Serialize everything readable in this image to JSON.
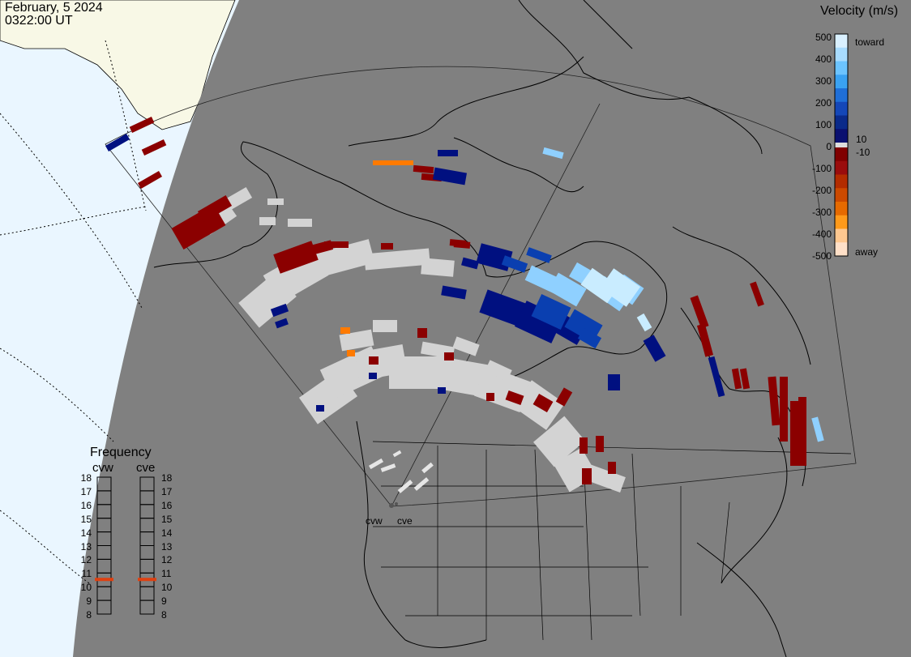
{
  "header": {
    "date": "February, 5 2024",
    "time": "0322:00 UT"
  },
  "colors": {
    "ocean": "#eaf6ff",
    "land_alaska": "#f8f8e6",
    "map_gray": "#808080",
    "gray_scatter": "#d3d3d3",
    "coastline": "#000000"
  },
  "velocity_scale": {
    "title": "Velocity (m/s)",
    "ticks": [
      "500",
      "400",
      "300",
      "200",
      "100",
      "10",
      "0",
      "-10",
      "-100",
      "-200",
      "-300",
      "-400",
      "-500"
    ],
    "toward_label": "toward",
    "away_label": "away",
    "colors_toward": [
      "#d9f0ff",
      "#a8dcff",
      "#6cc4ff",
      "#3aa2f2",
      "#1f6fd8",
      "#1447b8",
      "#0a2a8a",
      "#0a1070"
    ],
    "colors_away": [
      "#800000",
      "#9a0c0c",
      "#b32c00",
      "#cc4a00",
      "#e66a00",
      "#ff9a1a",
      "#ffc890",
      "#ffe0c8"
    ]
  },
  "frequency": {
    "title": "Frequency",
    "radars": [
      "cvw",
      "cve"
    ],
    "ticks": [
      "18",
      "17",
      "16",
      "15",
      "14",
      "13",
      "12",
      "11",
      "10",
      "9",
      "8"
    ],
    "values_mhz": [
      11,
      11
    ],
    "marker_color": "#e04010"
  },
  "radar_sites": [
    "cvw",
    "cve"
  ]
}
